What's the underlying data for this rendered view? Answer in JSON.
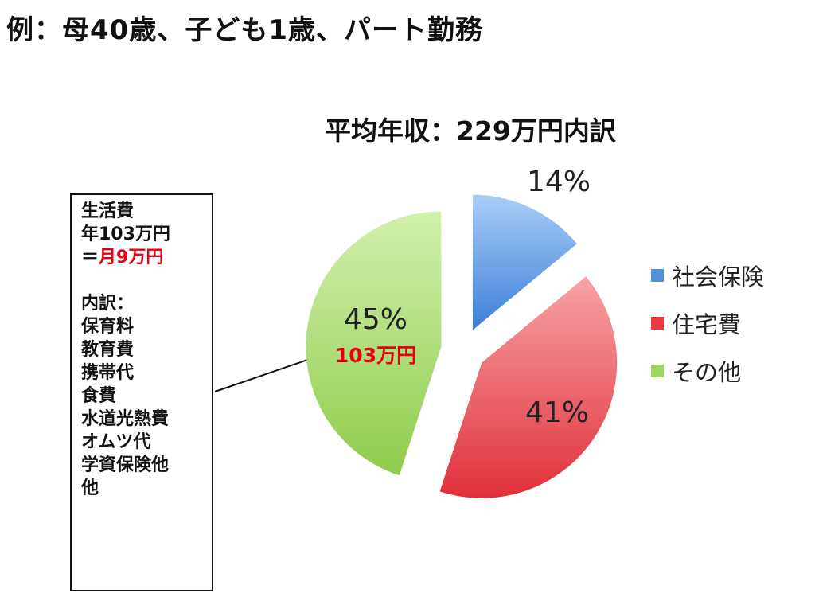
{
  "slide_title": "例：母40歳、子ども1歳、パート勤務",
  "chart_data": {
    "type": "pie",
    "title": "平均年収：229万円内訳",
    "categories": [
      "社会保険",
      "住宅費",
      "その他"
    ],
    "values": [
      14,
      41,
      45
    ],
    "value_labels": [
      "14%",
      "41%",
      "45%"
    ],
    "colors": [
      "#4f8fe0",
      "#e83c45",
      "#9cd65a"
    ],
    "highlight_label": "103万円",
    "legend_position": "right",
    "exploded": true
  },
  "note_box": {
    "lines": [
      "生活費",
      "年103万円"
    ],
    "monthly_prefix": "＝",
    "monthly_value": "月9万円",
    "breakdown_title": "内訳：",
    "items": [
      "保育料",
      "教育費",
      "携帯代",
      "食費",
      "水道光熱費",
      "オムツ代",
      "学資保険他",
      "他"
    ]
  }
}
